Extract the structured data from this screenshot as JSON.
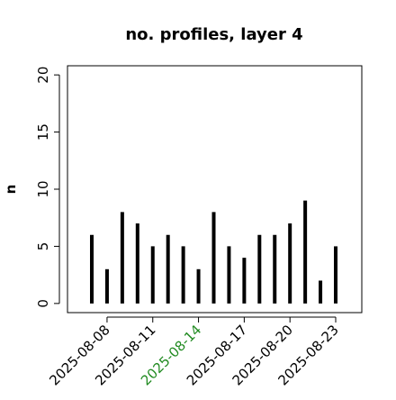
{
  "chart_data": {
    "type": "bar",
    "bar_style": "vertical-line",
    "title": "no. profiles, layer 4",
    "y_label": "n",
    "x": [
      "2025-08-07",
      "2025-08-08",
      "2025-08-09",
      "2025-08-10",
      "2025-08-11",
      "2025-08-12",
      "2025-08-13",
      "2025-08-14",
      "2025-08-15",
      "2025-08-16",
      "2025-08-17",
      "2025-08-18",
      "2025-08-19",
      "2025-08-20",
      "2025-08-21",
      "2025-08-22",
      "2025-08-23"
    ],
    "values": [
      6,
      3,
      8,
      7,
      5,
      6,
      5,
      3,
      8,
      5,
      4,
      6,
      6,
      7,
      9,
      2,
      5
    ],
    "color": "#000000",
    "xticks": [
      "2025-08-08",
      "2025-08-11",
      "2025-08-14",
      "2025-08-17",
      "2025-08-20",
      "2025-08-23"
    ],
    "xtick_colors": [
      "#000000",
      "#000000",
      "#228b22",
      "#000000",
      "#000000",
      "#000000"
    ],
    "ylim": [
      -0.8,
      20.8
    ],
    "yticks": [
      0,
      5,
      10,
      15,
      20
    ]
  }
}
